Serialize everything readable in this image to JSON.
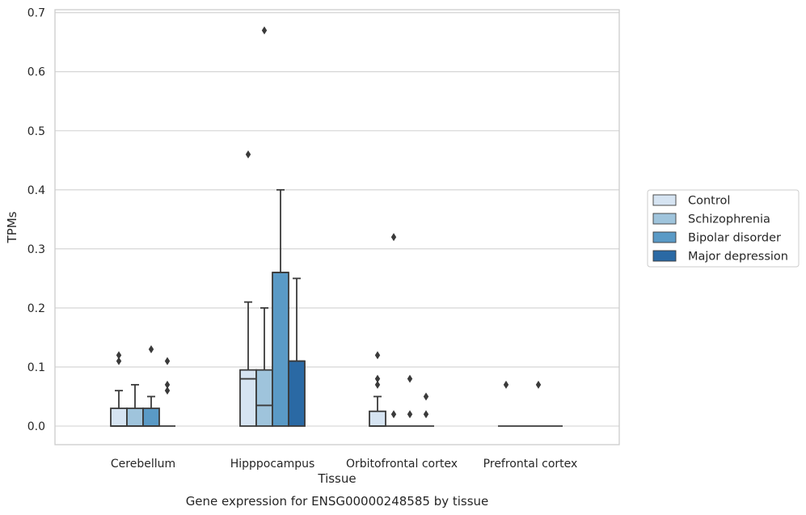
{
  "chart_data": {
    "type": "box",
    "title": "Gene expression for ENSG00000248585 by tissue",
    "xlabel": "Tissue",
    "ylabel": "TPMs",
    "ylim": [
      -0.032,
      0.705
    ],
    "yticks": [
      0.0,
      0.1,
      0.2,
      0.3,
      0.4,
      0.5,
      0.6,
      0.7
    ],
    "ytick_labels": [
      "0.0",
      "0.1",
      "0.2",
      "0.3",
      "0.4",
      "0.5",
      "0.6",
      "0.7"
    ],
    "grid": "horizontal",
    "legend_position": "outside right",
    "categories": [
      "Cerebellum",
      "Hipppocampus",
      "Orbitofrontal cortex",
      "Prefrontal cortex"
    ],
    "series": [
      {
        "name": "Control",
        "color": "#d6e4f2",
        "boxes": [
          {
            "q1": 0.0,
            "median": 0.0,
            "q3": 0.03,
            "whisker_low": 0.0,
            "whisker_high": 0.06,
            "outliers": [
              0.11,
              0.12
            ]
          },
          {
            "q1": 0.0,
            "median": 0.08,
            "q3": 0.095,
            "whisker_low": 0.0,
            "whisker_high": 0.21,
            "outliers": [
              0.46
            ]
          },
          {
            "q1": 0.0,
            "median": 0.0,
            "q3": 0.025,
            "whisker_low": 0.0,
            "whisker_high": 0.05,
            "outliers": [
              0.07,
              0.08,
              0.12
            ]
          },
          {
            "q1": 0.0,
            "median": 0.0,
            "q3": 0.0,
            "whisker_low": 0.0,
            "whisker_high": 0.0,
            "outliers": [
              0.07
            ]
          }
        ]
      },
      {
        "name": "Schizophrenia",
        "color": "#9fc4dc",
        "boxes": [
          {
            "q1": 0.0,
            "median": 0.0,
            "q3": 0.03,
            "whisker_low": 0.0,
            "whisker_high": 0.07,
            "outliers": []
          },
          {
            "q1": 0.0,
            "median": 0.035,
            "q3": 0.095,
            "whisker_low": 0.0,
            "whisker_high": 0.2,
            "outliers": [
              0.67
            ]
          },
          {
            "q1": 0.0,
            "median": 0.0,
            "q3": 0.0,
            "whisker_low": 0.0,
            "whisker_high": 0.0,
            "outliers": [
              0.02,
              0.32
            ]
          },
          {
            "q1": 0.0,
            "median": 0.0,
            "q3": 0.0,
            "whisker_low": 0.0,
            "whisker_high": 0.0,
            "outliers": []
          }
        ]
      },
      {
        "name": "Bipolar disorder",
        "color": "#5a9ac6",
        "boxes": [
          {
            "q1": 0.0,
            "median": 0.0,
            "q3": 0.03,
            "whisker_low": 0.0,
            "whisker_high": 0.05,
            "outliers": [
              0.13
            ]
          },
          {
            "q1": 0.0,
            "median": 0.26,
            "q3": 0.26,
            "whisker_low": 0.0,
            "whisker_high": 0.4,
            "outliers": []
          },
          {
            "q1": 0.0,
            "median": 0.0,
            "q3": 0.0,
            "whisker_low": 0.0,
            "whisker_high": 0.0,
            "outliers": [
              0.02,
              0.08
            ]
          },
          {
            "q1": 0.0,
            "median": 0.0,
            "q3": 0.0,
            "whisker_low": 0.0,
            "whisker_high": 0.0,
            "outliers": [
              0.07
            ]
          }
        ]
      },
      {
        "name": "Major depression",
        "color": "#2a69a4",
        "boxes": [
          {
            "q1": 0.0,
            "median": 0.0,
            "q3": 0.0,
            "whisker_low": 0.0,
            "whisker_high": 0.0,
            "outliers": [
              0.06,
              0.07,
              0.11
            ]
          },
          {
            "q1": 0.0,
            "median": 0.11,
            "q3": 0.11,
            "whisker_low": 0.0,
            "whisker_high": 0.25,
            "outliers": []
          },
          {
            "q1": 0.0,
            "median": 0.0,
            "q3": 0.0,
            "whisker_low": 0.0,
            "whisker_high": 0.0,
            "outliers": [
              0.02,
              0.05
            ]
          },
          {
            "q1": 0.0,
            "median": 0.0,
            "q3": 0.0,
            "whisker_low": 0.0,
            "whisker_high": 0.0,
            "outliers": []
          }
        ]
      }
    ]
  }
}
